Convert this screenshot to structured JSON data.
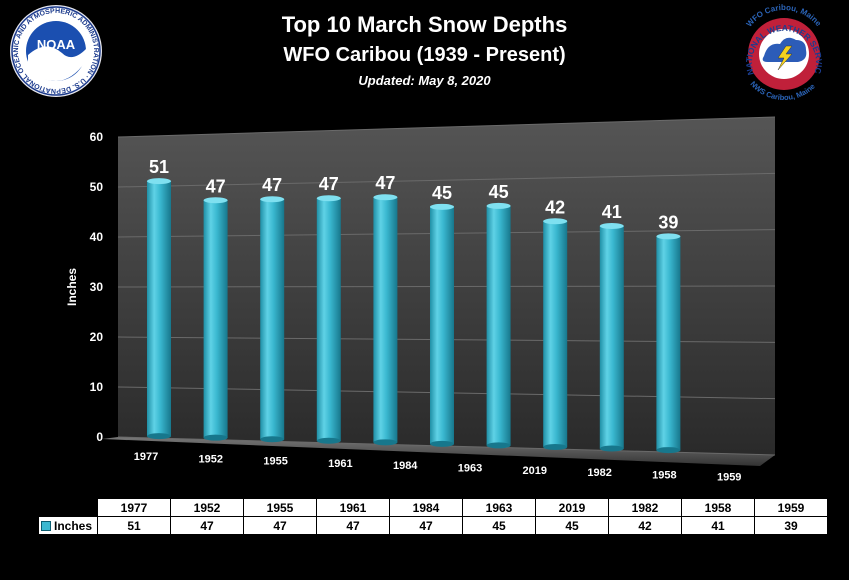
{
  "header": {
    "title": "Top 10 March Snow Depths",
    "subtitle": "WFO Caribou (1939 - Present)",
    "updated": "Updated:  May 8, 2020"
  },
  "logos": {
    "noaa": {
      "center_text": "NOAA",
      "ring_text": "NATIONAL OCEANIC AND ATMOSPHERIC ADMINISTRATION · U.S. DEPARTMENT OF COMMERCE"
    },
    "nws": {
      "ring_text": "NATIONAL WEATHER SERVICE",
      "top_text": "WFO Caribou, Maine",
      "bottom_text": "NWS Caribou, Maine"
    }
  },
  "chart_data": {
    "type": "bar",
    "categories": [
      "1977",
      "1952",
      "1955",
      "1961",
      "1984",
      "1963",
      "2019",
      "1982",
      "1958",
      "1959"
    ],
    "series": [
      {
        "name": "Inches",
        "values": [
          51,
          47,
          47,
          47,
          47,
          45,
          45,
          42,
          41,
          39
        ]
      }
    ],
    "ylabel": "Inches",
    "ylim": [
      0,
      60
    ],
    "yticks": [
      0,
      10,
      20,
      30,
      40,
      50,
      60
    ],
    "colors": {
      "bar": "#3ab8d0",
      "background": "#000000",
      "wall": "#4a4a4a"
    },
    "data_table": true
  }
}
